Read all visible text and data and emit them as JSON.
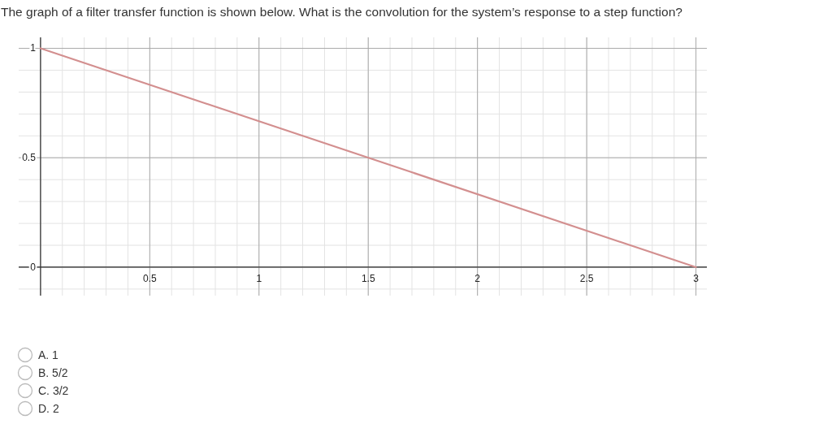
{
  "chart_data": {
    "type": "line",
    "title": "The graph of a filter transfer function is shown below.  What is the convolution for the system’s response to a step function?",
    "x": [
      0,
      3
    ],
    "series": [
      {
        "color": "#d38f8f",
        "values": [
          1,
          0
        ]
      }
    ],
    "xlim": [
      -0.1,
      3.05
    ],
    "ylim": [
      -0.13,
      1.05
    ],
    "xticks": [
      0.5,
      1,
      1.5,
      2,
      2.5,
      3
    ],
    "yticks": [
      0,
      0.5,
      1
    ],
    "grid": true,
    "marker": "none",
    "line_style": "solid",
    "annotations": [
      "A. 1",
      "B. 5/2",
      "C. 3/2",
      "D. 2"
    ]
  }
}
